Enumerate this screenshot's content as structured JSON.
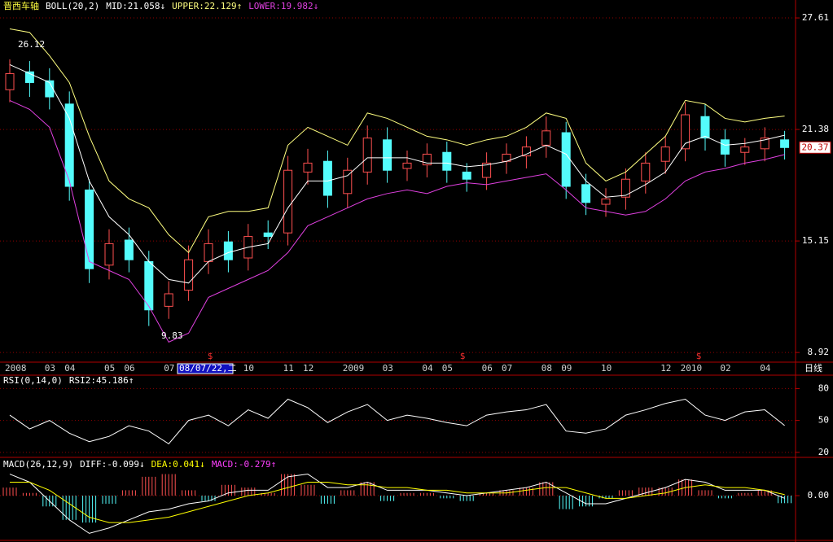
{
  "header": {
    "cursor_label": "08/07/22,二",
    "period": "日线",
    "marker": "$"
  },
  "chart_data": [
    {
      "type": "candlestick",
      "title": "晋西车轴",
      "indicator": "BOLL(20,2)",
      "categories": [
        "2008",
        null,
        "03",
        "04",
        null,
        "05",
        "06",
        null,
        "07",
        null,
        null,
        null,
        "10",
        null,
        "11",
        "12",
        null,
        "2009",
        null,
        "03",
        null,
        "04",
        "05",
        null,
        "06",
        "07",
        null,
        "08",
        "09",
        null,
        "10",
        null,
        null,
        "12",
        "2010",
        null,
        "02",
        null,
        "04",
        null
      ],
      "open": [
        23.6,
        24.6,
        24.1,
        22.8,
        18.0,
        13.8,
        15.2,
        14.0,
        11.5,
        12.4,
        14.0,
        15.1,
        14.2,
        15.6,
        15.6,
        19.0,
        19.6,
        17.8,
        19.0,
        20.8,
        19.2,
        19.4,
        20.1,
        19.0,
        18.7,
        19.6,
        19.9,
        20.5,
        21.2,
        18.3,
        17.2,
        17.6,
        18.5,
        19.6,
        20.3,
        22.1,
        20.8,
        20.1,
        20.3,
        20.8
      ],
      "high": [
        25.3,
        25.2,
        24.8,
        23.5,
        18.6,
        15.8,
        15.9,
        14.6,
        12.9,
        14.9,
        15.8,
        15.7,
        16.1,
        16.3,
        19.9,
        20.3,
        20.2,
        19.8,
        21.6,
        21.5,
        20.2,
        20.6,
        20.7,
        19.5,
        20.1,
        20.6,
        21.0,
        22.1,
        21.8,
        18.9,
        18.1,
        19.2,
        20.1,
        21.0,
        22.9,
        22.8,
        21.4,
        20.9,
        21.5,
        21.3
      ],
      "low": [
        22.9,
        23.2,
        22.5,
        17.4,
        12.8,
        13.0,
        13.4,
        10.4,
        10.8,
        11.8,
        13.3,
        13.4,
        13.5,
        14.7,
        14.9,
        18.3,
        17.0,
        17.0,
        18.3,
        18.4,
        18.5,
        18.7,
        18.4,
        17.9,
        18.0,
        18.9,
        19.2,
        19.8,
        17.5,
        16.6,
        16.5,
        16.9,
        17.8,
        18.9,
        19.6,
        20.2,
        19.3,
        19.4,
        19.6,
        19.7
      ],
      "close": [
        24.5,
        24.0,
        23.2,
        18.2,
        13.6,
        15.0,
        14.1,
        11.3,
        12.2,
        14.1,
        15.0,
        14.1,
        15.4,
        15.4,
        19.1,
        19.5,
        17.7,
        19.1,
        20.9,
        19.1,
        19.5,
        20.0,
        19.1,
        18.6,
        19.5,
        20.0,
        20.4,
        21.3,
        18.2,
        17.3,
        17.5,
        18.6,
        19.5,
        20.4,
        22.2,
        20.9,
        20.0,
        20.4,
        20.9,
        20.37
      ],
      "up_color": "#ff5050",
      "down_color": "#54fcfc",
      "series": [
        {
          "name": "MID:21.058↓",
          "color": "#ffffff",
          "values": [
            25.0,
            24.5,
            24.0,
            22.0,
            18.5,
            16.5,
            15.5,
            14.0,
            13.0,
            12.8,
            14.0,
            14.5,
            14.8,
            15.0,
            17.0,
            18.5,
            18.5,
            18.8,
            19.8,
            19.8,
            19.8,
            19.5,
            19.5,
            19.3,
            19.4,
            19.6,
            20.0,
            20.5,
            20.0,
            18.5,
            17.6,
            17.7,
            18.3,
            19.0,
            20.6,
            21.0,
            20.5,
            20.6,
            20.8,
            21.06
          ]
        },
        {
          "name": "UPPER:22.129↑",
          "color": "#ffff80",
          "values": [
            27.0,
            26.8,
            25.5,
            24.0,
            21.0,
            18.5,
            17.5,
            17.0,
            15.5,
            14.5,
            16.5,
            16.8,
            16.8,
            17.0,
            20.5,
            21.5,
            21.0,
            20.5,
            22.3,
            22.0,
            21.5,
            21.0,
            20.8,
            20.5,
            20.8,
            21.0,
            21.5,
            22.3,
            22.0,
            19.5,
            18.5,
            19.0,
            20.0,
            21.0,
            23.0,
            22.8,
            22.0,
            21.8,
            22.0,
            22.13
          ]
        },
        {
          "name": "LOWER:19.982↓",
          "color": "#e040e0",
          "values": [
            23.0,
            22.5,
            21.5,
            18.5,
            14.0,
            13.5,
            13.0,
            11.5,
            9.5,
            10.0,
            12.0,
            12.5,
            13.0,
            13.5,
            14.5,
            16.0,
            16.5,
            17.0,
            17.5,
            17.8,
            18.0,
            17.8,
            18.2,
            18.4,
            18.3,
            18.5,
            18.7,
            18.9,
            18.0,
            17.0,
            16.8,
            16.6,
            16.8,
            17.5,
            18.5,
            19.0,
            19.2,
            19.5,
            19.7,
            19.98
          ]
        }
      ],
      "high_label": 26.12,
      "low_label": 9.83,
      "last_price": 20.37,
      "ylim": [
        8.38,
        27.93
      ],
      "yticks": [
        8.92,
        15.15,
        21.38,
        27.61
      ],
      "grid": true
    },
    {
      "type": "line",
      "title": "RSI(0,14,0)",
      "series": [
        {
          "name": "RSI2:45.186↑",
          "color": "#ffffff",
          "values": [
            55,
            42,
            50,
            38,
            30,
            35,
            45,
            40,
            28,
            50,
            55,
            45,
            60,
            52,
            70,
            62,
            48,
            58,
            65,
            50,
            55,
            52,
            48,
            45,
            55,
            58,
            60,
            65,
            40,
            38,
            42,
            55,
            60,
            66,
            70,
            55,
            50,
            58,
            60,
            45.19
          ]
        }
      ],
      "ylim": [
        16.8,
        91.8
      ],
      "yticks": [
        20,
        50,
        80
      ],
      "grid": true
    },
    {
      "type": "macd",
      "title": "MACD(26,12,9)",
      "series": [
        {
          "name": "DIFF:-0.099↓",
          "color": "#ffffff",
          "values": [
            0.8,
            0.5,
            -0.2,
            -0.9,
            -1.4,
            -1.2,
            -0.9,
            -0.6,
            -0.5,
            -0.3,
            -0.2,
            0.1,
            0.2,
            0.2,
            0.7,
            0.8,
            0.3,
            0.3,
            0.5,
            0.2,
            0.2,
            0.2,
            0.1,
            0.0,
            0.1,
            0.2,
            0.3,
            0.5,
            0.1,
            -0.3,
            -0.3,
            -0.1,
            0.1,
            0.3,
            0.6,
            0.5,
            0.2,
            0.2,
            0.2,
            -0.1
          ]
        },
        {
          "name": "DEA:0.041↓",
          "color": "#ffff00",
          "values": [
            0.5,
            0.5,
            0.2,
            -0.3,
            -0.8,
            -1.0,
            -1.0,
            -0.9,
            -0.8,
            -0.6,
            -0.4,
            -0.2,
            0.0,
            0.1,
            0.3,
            0.5,
            0.5,
            0.4,
            0.4,
            0.3,
            0.3,
            0.2,
            0.2,
            0.1,
            0.1,
            0.1,
            0.2,
            0.3,
            0.3,
            0.1,
            -0.1,
            -0.1,
            0.0,
            0.1,
            0.3,
            0.4,
            0.3,
            0.3,
            0.2,
            0.04
          ]
        },
        {
          "name": "MACD:-0.279↑",
          "color": "#ff40ff",
          "positive_color": "#ff5050",
          "negative_color": "#54fcfc",
          "values": [
            0.3,
            0.1,
            -0.4,
            -0.9,
            -1.0,
            -0.3,
            0.2,
            0.7,
            0.8,
            0.2,
            -0.2,
            0.4,
            0.3,
            0.1,
            0.8,
            0.4,
            -0.3,
            0.2,
            0.5,
            -0.2,
            0.1,
            0.1,
            -0.1,
            -0.2,
            0.1,
            0.2,
            0.3,
            0.5,
            -0.5,
            -0.4,
            -0.1,
            0.2,
            0.3,
            0.3,
            0.6,
            0.2,
            -0.1,
            0.1,
            0.2,
            -0.28
          ]
        }
      ],
      "ylim": [
        -1.6,
        1.33
      ],
      "yticks": [
        {
          "value": 0,
          "label": "0.00"
        }
      ],
      "grid": true
    }
  ]
}
